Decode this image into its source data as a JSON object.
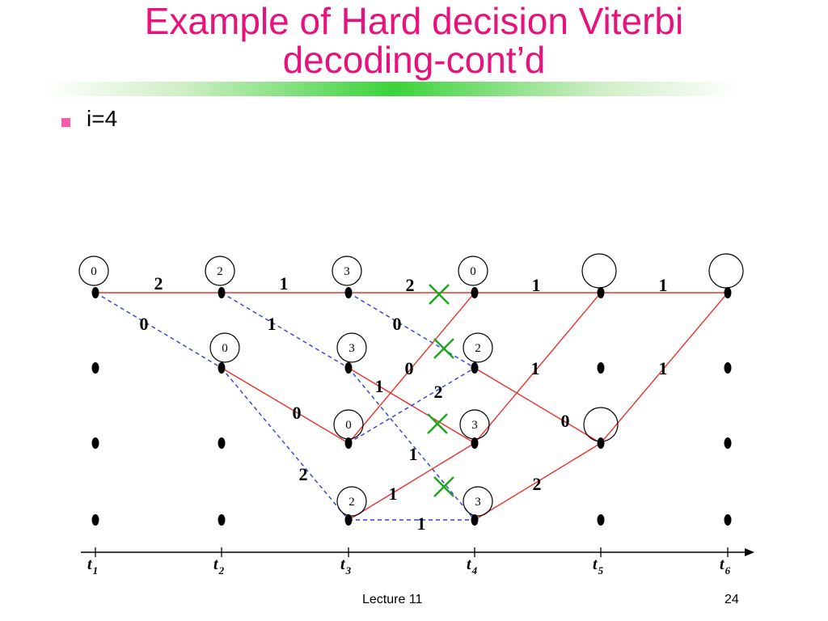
{
  "slide": {
    "title_line1": "Example of Hard decision Viterbi",
    "title_line2": "decoding-cont’d",
    "bullet": "i=4",
    "footer_left": "Lecture 11",
    "footer_right": "24"
  },
  "trellis": {
    "times": [
      {
        "label": "t",
        "sub": "1"
      },
      {
        "label": "t",
        "sub": "2"
      },
      {
        "label": "t",
        "sub": "3"
      },
      {
        "label": "t",
        "sub": "4"
      },
      {
        "label": "t",
        "sub": "5"
      },
      {
        "label": "t",
        "sub": "6"
      }
    ],
    "path_metrics": [
      {
        "t": 0,
        "s": 0,
        "value": "0"
      },
      {
        "t": 1,
        "s": 0,
        "value": "2"
      },
      {
        "t": 1,
        "s": 1,
        "value": "0"
      },
      {
        "t": 2,
        "s": 0,
        "value": "3"
      },
      {
        "t": 2,
        "s": 1,
        "value": "3"
      },
      {
        "t": 2,
        "s": 2,
        "value": "0"
      },
      {
        "t": 2,
        "s": 3,
        "value": "2"
      },
      {
        "t": 3,
        "s": 0,
        "value": "0"
      },
      {
        "t": 3,
        "s": 1,
        "value": "2"
      },
      {
        "t": 3,
        "s": 2,
        "value": "3"
      },
      {
        "t": 3,
        "s": 3,
        "value": "3"
      },
      {
        "t": 4,
        "s": 0,
        "value": ""
      },
      {
        "t": 4,
        "s": 2,
        "value": ""
      },
      {
        "t": 5,
        "s": 0,
        "value": ""
      }
    ],
    "branches": [
      {
        "from": [
          0,
          0
        ],
        "to": [
          1,
          0
        ],
        "style": "solid",
        "label": "2"
      },
      {
        "from": [
          0,
          0
        ],
        "to": [
          1,
          1
        ],
        "style": "dashed",
        "label": "0"
      },
      {
        "from": [
          1,
          0
        ],
        "to": [
          2,
          0
        ],
        "style": "solid",
        "label": "1"
      },
      {
        "from": [
          1,
          0
        ],
        "to": [
          2,
          1
        ],
        "style": "dashed",
        "label": "1"
      },
      {
        "from": [
          1,
          1
        ],
        "to": [
          2,
          2
        ],
        "style": "solid",
        "label": "0"
      },
      {
        "from": [
          1,
          1
        ],
        "to": [
          2,
          3
        ],
        "style": "dashed",
        "label": "2"
      },
      {
        "from": [
          2,
          0
        ],
        "to": [
          3,
          0
        ],
        "style": "solid",
        "label": "2"
      },
      {
        "from": [
          2,
          0
        ],
        "to": [
          3,
          1
        ],
        "style": "dashed",
        "label": "0"
      },
      {
        "from": [
          2,
          1
        ],
        "to": [
          3,
          2
        ],
        "style": "solid",
        "label": "1"
      },
      {
        "from": [
          2,
          1
        ],
        "to": [
          3,
          3
        ],
        "style": "dashed",
        "label": "1"
      },
      {
        "from": [
          2,
          2
        ],
        "to": [
          3,
          0
        ],
        "style": "solid",
        "label": "0"
      },
      {
        "from": [
          2,
          2
        ],
        "to": [
          3,
          1
        ],
        "style": "dashed",
        "label": "2"
      },
      {
        "from": [
          2,
          3
        ],
        "to": [
          3,
          2
        ],
        "style": "solid",
        "label": "1"
      },
      {
        "from": [
          2,
          3
        ],
        "to": [
          3,
          3
        ],
        "style": "dashed",
        "label": "1"
      },
      {
        "from": [
          3,
          0
        ],
        "to": [
          4,
          0
        ],
        "style": "solid",
        "label": "1"
      },
      {
        "from": [
          3,
          1
        ],
        "to": [
          4,
          2
        ],
        "style": "solid",
        "label": "0"
      },
      {
        "from": [
          3,
          2
        ],
        "to": [
          4,
          0
        ],
        "style": "solid",
        "label": "1"
      },
      {
        "from": [
          3,
          3
        ],
        "to": [
          4,
          2
        ],
        "style": "solid",
        "label": "2"
      },
      {
        "from": [
          4,
          0
        ],
        "to": [
          5,
          0
        ],
        "style": "solid",
        "label": "1"
      },
      {
        "from": [
          4,
          2
        ],
        "to": [
          5,
          0
        ],
        "style": "solid",
        "label": "1"
      }
    ],
    "discard_marks": 4,
    "colors": {
      "solid_branch": "#e8322e",
      "dashed_branch": "#2d3fd6",
      "discard_mark": "#1ea51e",
      "node": "#000000"
    }
  }
}
